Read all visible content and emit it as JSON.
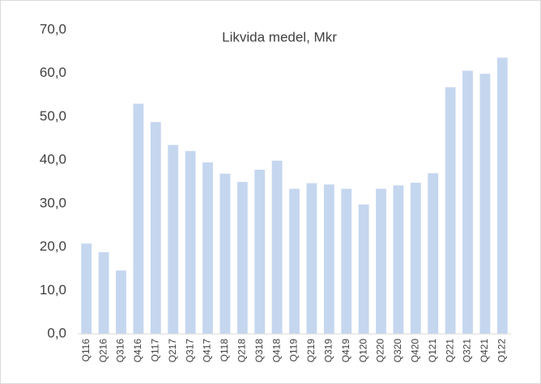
{
  "chart_data": {
    "type": "bar",
    "title": "Likvida medel, Mkr",
    "categories": [
      "Q116",
      "Q216",
      "Q316",
      "Q416",
      "Q117",
      "Q217",
      "Q317",
      "Q417",
      "Q118",
      "Q218",
      "Q318",
      "Q418",
      "Q119",
      "Q219",
      "Q319",
      "Q419",
      "Q120",
      "Q220",
      "Q320",
      "Q420",
      "Q121",
      "Q221",
      "Q321",
      "Q421",
      "Q122"
    ],
    "values": [
      20.8,
      18.8,
      14.6,
      53.0,
      48.8,
      43.5,
      42.1,
      39.5,
      36.9,
      35.0,
      37.8,
      39.9,
      33.4,
      34.7,
      34.4,
      33.4,
      29.8,
      33.4,
      34.2,
      34.8,
      37.0,
      56.8,
      60.6,
      59.9,
      63.6
    ],
    "color": "#c5d6ef",
    "ylim": [
      0,
      70
    ],
    "yticks": [
      {
        "value": 0,
        "label": "0,0"
      },
      {
        "value": 10,
        "label": "10,0"
      },
      {
        "value": 20,
        "label": "20,0"
      },
      {
        "value": 30,
        "label": "30,0"
      },
      {
        "value": 40,
        "label": "40,0"
      },
      {
        "value": 50,
        "label": "50,0"
      },
      {
        "value": 60,
        "label": "60,0"
      },
      {
        "value": 70,
        "label": "70,0"
      }
    ],
    "grid": false
  }
}
